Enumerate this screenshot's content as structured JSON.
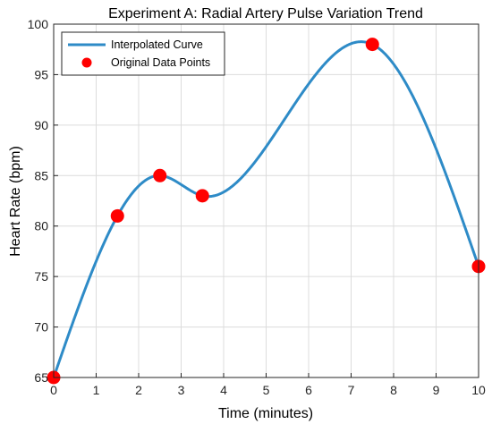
{
  "chart_data": {
    "type": "line",
    "title": "Experiment A: Radial Artery Pulse Variation Trend",
    "xlabel": "Time (minutes)",
    "ylabel": "Heart Rate (bpm)",
    "xlim": [
      0,
      10
    ],
    "ylim": [
      65,
      100
    ],
    "xticks": [
      "0",
      "1",
      "2",
      "3",
      "4",
      "5",
      "6",
      "7",
      "8",
      "9",
      "10"
    ],
    "yticks": [
      "65",
      "70",
      "75",
      "80",
      "85",
      "90",
      "95",
      "100"
    ],
    "grid": true,
    "legend_position": "top-left",
    "series": [
      {
        "name": "Interpolated Curve",
        "kind": "line",
        "color": "#2e8bc7",
        "x": [
          0,
          1.5,
          2.5,
          3.5,
          7.5,
          10
        ],
        "y": [
          65,
          81,
          85,
          83,
          98,
          76
        ]
      },
      {
        "name": "Original Data Points",
        "kind": "scatter",
        "color": "#ff0000",
        "x": [
          0,
          1.5,
          2.5,
          3.5,
          7.5,
          10
        ],
        "y": [
          65,
          81,
          85,
          83,
          98,
          76
        ]
      }
    ]
  }
}
